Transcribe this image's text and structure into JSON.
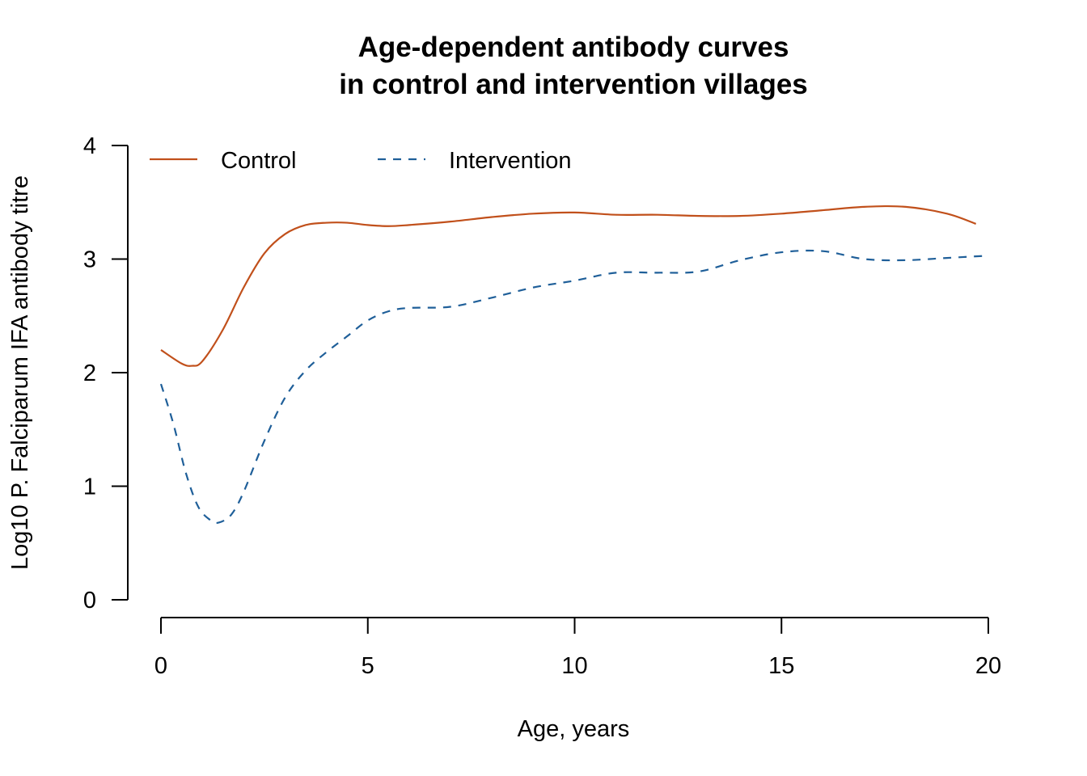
{
  "chart_data": {
    "type": "line",
    "title_lines": [
      "Age-dependent antibody curves",
      "in control and intervention villages"
    ],
    "xlabel": "Age, years",
    "ylabel": "Log10 P. Falciparum IFA antibody titre",
    "xlim": [
      0,
      20
    ],
    "ylim": [
      0,
      4
    ],
    "x_ticks": [
      0,
      5,
      10,
      15,
      20
    ],
    "y_ticks": [
      0,
      1,
      2,
      3,
      4
    ],
    "grid": false,
    "legend_position": "top-left, horizontal",
    "series": [
      {
        "name": "Control",
        "color": "#c1501b",
        "dash": "solid",
        "x": [
          0,
          0.5,
          0.75,
          1.0,
          1.5,
          2.0,
          2.5,
          3.0,
          3.5,
          4.0,
          4.5,
          5.0,
          5.5,
          6.0,
          7.0,
          8.0,
          9.0,
          10.0,
          11.0,
          12.0,
          13.0,
          14.0,
          15.0,
          16.0,
          17.0,
          18.0,
          19.0,
          19.7
        ],
        "y": [
          2.2,
          2.08,
          2.06,
          2.1,
          2.38,
          2.75,
          3.05,
          3.22,
          3.3,
          3.32,
          3.32,
          3.3,
          3.29,
          3.3,
          3.33,
          3.37,
          3.4,
          3.41,
          3.39,
          3.39,
          3.38,
          3.38,
          3.4,
          3.43,
          3.46,
          3.46,
          3.4,
          3.31
        ]
      },
      {
        "name": "Intervention",
        "color": "#1f5f99",
        "dash": "dashed",
        "x": [
          0,
          0.3,
          0.6,
          0.9,
          1.2,
          1.4,
          1.7,
          2.0,
          2.5,
          3.0,
          3.5,
          4.0,
          4.5,
          5.0,
          5.5,
          6.0,
          7.0,
          8.0,
          9.0,
          10.0,
          11.0,
          12.0,
          13.0,
          14.0,
          15.0,
          16.0,
          17.0,
          18.0,
          19.0,
          20.0
        ],
        "y": [
          1.9,
          1.55,
          1.12,
          0.82,
          0.7,
          0.68,
          0.75,
          0.95,
          1.4,
          1.78,
          2.02,
          2.18,
          2.32,
          2.46,
          2.54,
          2.57,
          2.58,
          2.66,
          2.75,
          2.81,
          2.88,
          2.88,
          2.89,
          2.99,
          3.06,
          3.07,
          3.0,
          2.99,
          3.01,
          3.03
        ]
      }
    ]
  }
}
